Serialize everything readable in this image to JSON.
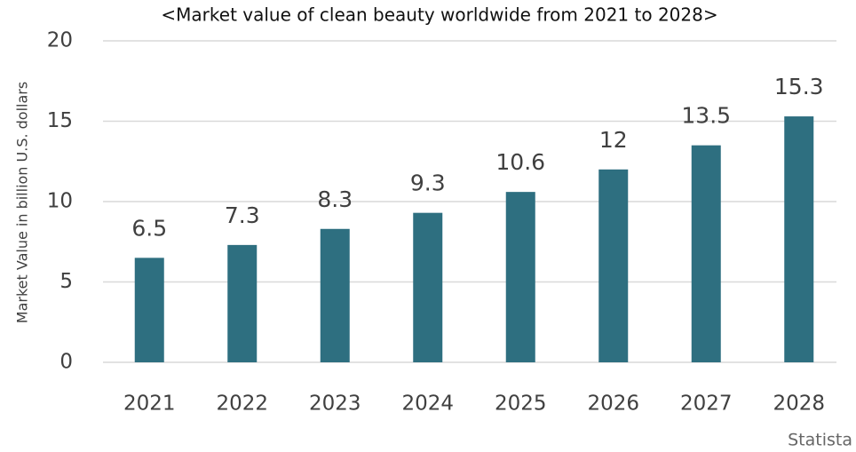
{
  "chart_data": {
    "type": "bar",
    "title": "<Market value of clean beauty worldwide from 2021 to 2028>",
    "y_label": "Market Value in billion U.S. dollars",
    "source": "Statista",
    "categories": [
      "2021",
      "2022",
      "2023",
      "2024",
      "2025",
      "2026",
      "2027",
      "2028"
    ],
    "values": [
      6.5,
      7.3,
      8.3,
      9.3,
      10.6,
      12,
      13.5,
      15.3
    ],
    "color": "#2e6f80",
    "ylim": [
      0,
      20
    ],
    "yticks": [
      0,
      5,
      10,
      15,
      20
    ],
    "grid": true
  }
}
